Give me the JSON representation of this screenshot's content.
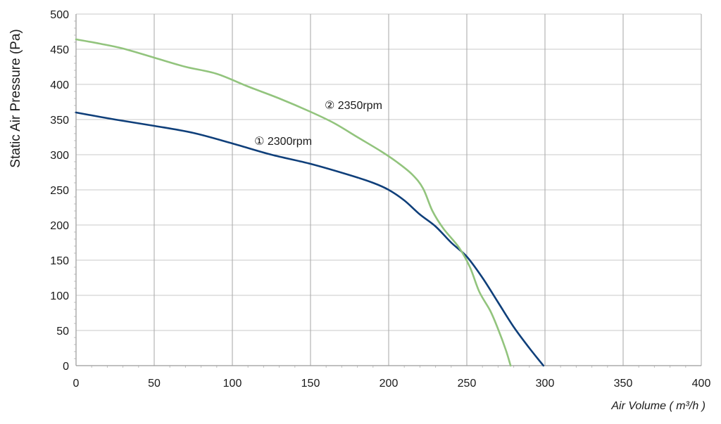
{
  "chart_data": {
    "type": "line",
    "title": "",
    "xlabel": "Air Volume ( m³/h )",
    "ylabel": "Static Air Pressure  (Pa)",
    "xlim": [
      0,
      400
    ],
    "ylim": [
      0,
      500
    ],
    "x_ticks": [
      "0",
      "50",
      "100",
      "150",
      "200",
      "250",
      "300",
      "350",
      "400"
    ],
    "y_ticks": [
      "0",
      "50",
      "100",
      "150",
      "200",
      "250",
      "300",
      "350",
      "400",
      "450",
      "500"
    ],
    "grid": true,
    "legend": "none",
    "series": [
      {
        "name": "① 2300rpm",
        "color": "#0f3f7a",
        "label_at": [
          114,
          314
        ],
        "points": [
          [
            0,
            360
          ],
          [
            25,
            350
          ],
          [
            50,
            341
          ],
          [
            75,
            331
          ],
          [
            100,
            316
          ],
          [
            125,
            300
          ],
          [
            150,
            287
          ],
          [
            175,
            271
          ],
          [
            190,
            260
          ],
          [
            200,
            250
          ],
          [
            210,
            235
          ],
          [
            220,
            215
          ],
          [
            230,
            198
          ],
          [
            240,
            175
          ],
          [
            250,
            155
          ],
          [
            260,
            125
          ],
          [
            270,
            90
          ],
          [
            280,
            55
          ],
          [
            290,
            25
          ],
          [
            299,
            0
          ]
        ]
      },
      {
        "name": "② 2350rpm",
        "color": "#92c47d",
        "label_at": [
          159,
          365
        ],
        "points": [
          [
            0,
            464
          ],
          [
            15,
            458
          ],
          [
            30,
            451
          ],
          [
            50,
            438
          ],
          [
            70,
            425
          ],
          [
            90,
            415
          ],
          [
            110,
            397
          ],
          [
            130,
            380
          ],
          [
            150,
            361
          ],
          [
            165,
            345
          ],
          [
            180,
            325
          ],
          [
            195,
            305
          ],
          [
            205,
            290
          ],
          [
            215,
            272
          ],
          [
            222,
            252
          ],
          [
            228,
            220
          ],
          [
            235,
            195
          ],
          [
            245,
            168
          ],
          [
            252,
            140
          ],
          [
            258,
            105
          ],
          [
            265,
            78
          ],
          [
            270,
            52
          ],
          [
            275,
            22
          ],
          [
            278,
            0
          ]
        ]
      }
    ]
  }
}
